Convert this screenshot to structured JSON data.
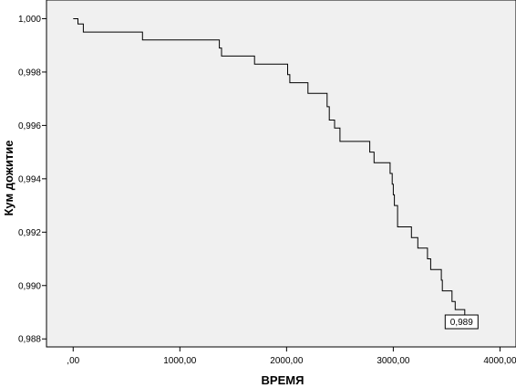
{
  "chart_data": {
    "type": "line",
    "title": "",
    "xlabel": "ВРЕМЯ",
    "ylabel": "Кум дожитие",
    "xlim": [
      -250,
      4150
    ],
    "ylim": [
      0.9877,
      1.0007
    ],
    "x_ticks": [
      0,
      1000,
      2000,
      3000,
      4000
    ],
    "x_tick_labels": [
      ",00",
      "1000,00",
      "2000,00",
      "3000,00",
      "4000,00"
    ],
    "y_ticks": [
      0.988,
      0.99,
      0.992,
      0.994,
      0.996,
      0.998,
      1.0
    ],
    "y_tick_labels": [
      "0,988",
      "0,990",
      "0,992",
      "0,994",
      "0,996",
      "0,998",
      "1,000"
    ],
    "grid": false,
    "background": "#f0f0f0",
    "line_color": "#000000",
    "series": [
      {
        "step": true,
        "points": [
          [
            0,
            1.0
          ],
          [
            45,
            0.9998
          ],
          [
            95,
            0.9995
          ],
          [
            650,
            0.9992
          ],
          [
            1370,
            0.9989
          ],
          [
            1390,
            0.9986
          ],
          [
            1700,
            0.9983
          ],
          [
            2010,
            0.9979
          ],
          [
            2030,
            0.9976
          ],
          [
            2200,
            0.9972
          ],
          [
            2380,
            0.9967
          ],
          [
            2400,
            0.9962
          ],
          [
            2450,
            0.9959
          ],
          [
            2500,
            0.9954
          ],
          [
            2780,
            0.995
          ],
          [
            2820,
            0.9946
          ],
          [
            2970,
            0.9942
          ],
          [
            2990,
            0.9938
          ],
          [
            3000,
            0.9934
          ],
          [
            3010,
            0.993
          ],
          [
            3040,
            0.9926
          ],
          [
            3040,
            0.9922
          ],
          [
            3170,
            0.9918
          ],
          [
            3230,
            0.9914
          ],
          [
            3320,
            0.991
          ],
          [
            3350,
            0.9906
          ],
          [
            3450,
            0.9902
          ],
          [
            3460,
            0.9898
          ],
          [
            3550,
            0.9894
          ],
          [
            3580,
            0.9891
          ],
          [
            3670,
            0.9889
          ]
        ]
      }
    ],
    "annotation": {
      "text": "0,989",
      "x": 3640,
      "y": 0.98864
    }
  }
}
